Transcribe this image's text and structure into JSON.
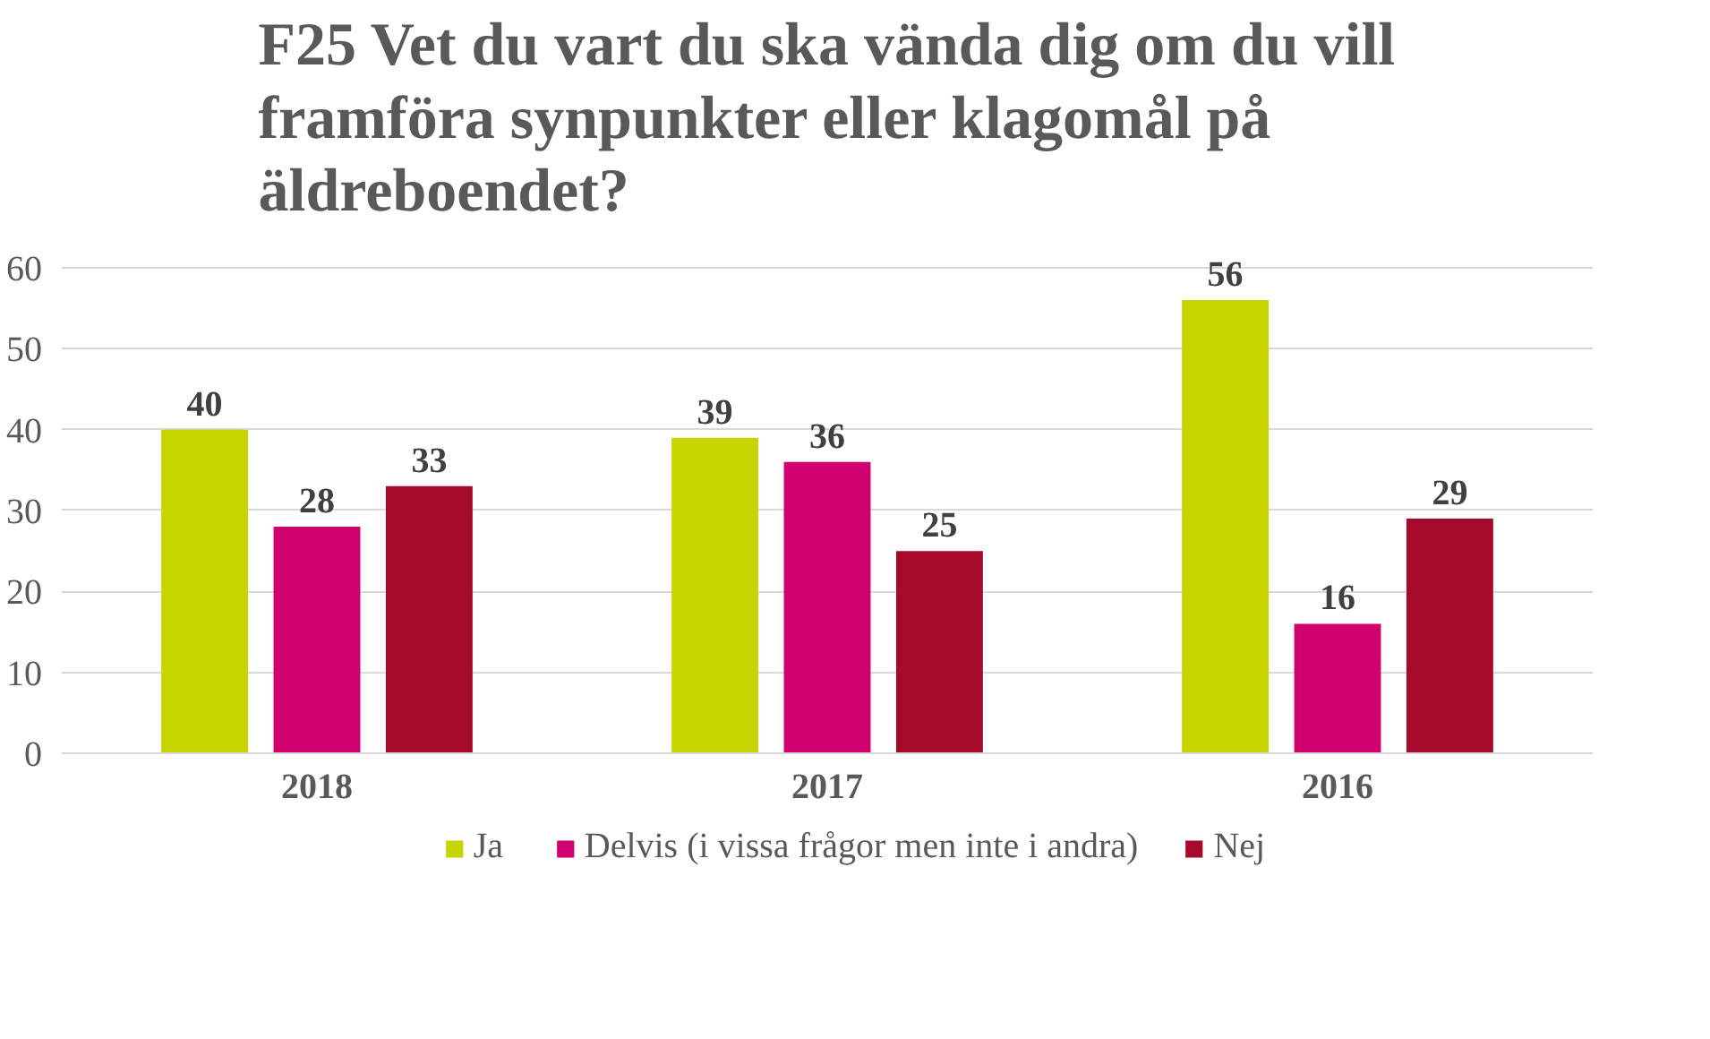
{
  "chart_data": {
    "type": "bar",
    "title": "F25 Vet du vart du ska vända dig om du vill framföra synpunkter eller klagomål på äldreboendet?",
    "categories": [
      "2018",
      "2017",
      "2016"
    ],
    "series": [
      {
        "name": "Ja",
        "color": "#c8d400",
        "values": [
          40,
          39,
          56
        ]
      },
      {
        "name": "Delvis (i vissa frågor men inte i andra)",
        "color": "#d1006f",
        "values": [
          28,
          36,
          16
        ]
      },
      {
        "name": "Nej",
        "color": "#a50a2d",
        "values": [
          33,
          25,
          29
        ]
      }
    ],
    "ylim": [
      0,
      60
    ],
    "yticks": [
      0,
      10,
      20,
      30,
      40,
      50,
      60
    ],
    "grid": "y",
    "legend": "bottom",
    "data_labels": true
  }
}
